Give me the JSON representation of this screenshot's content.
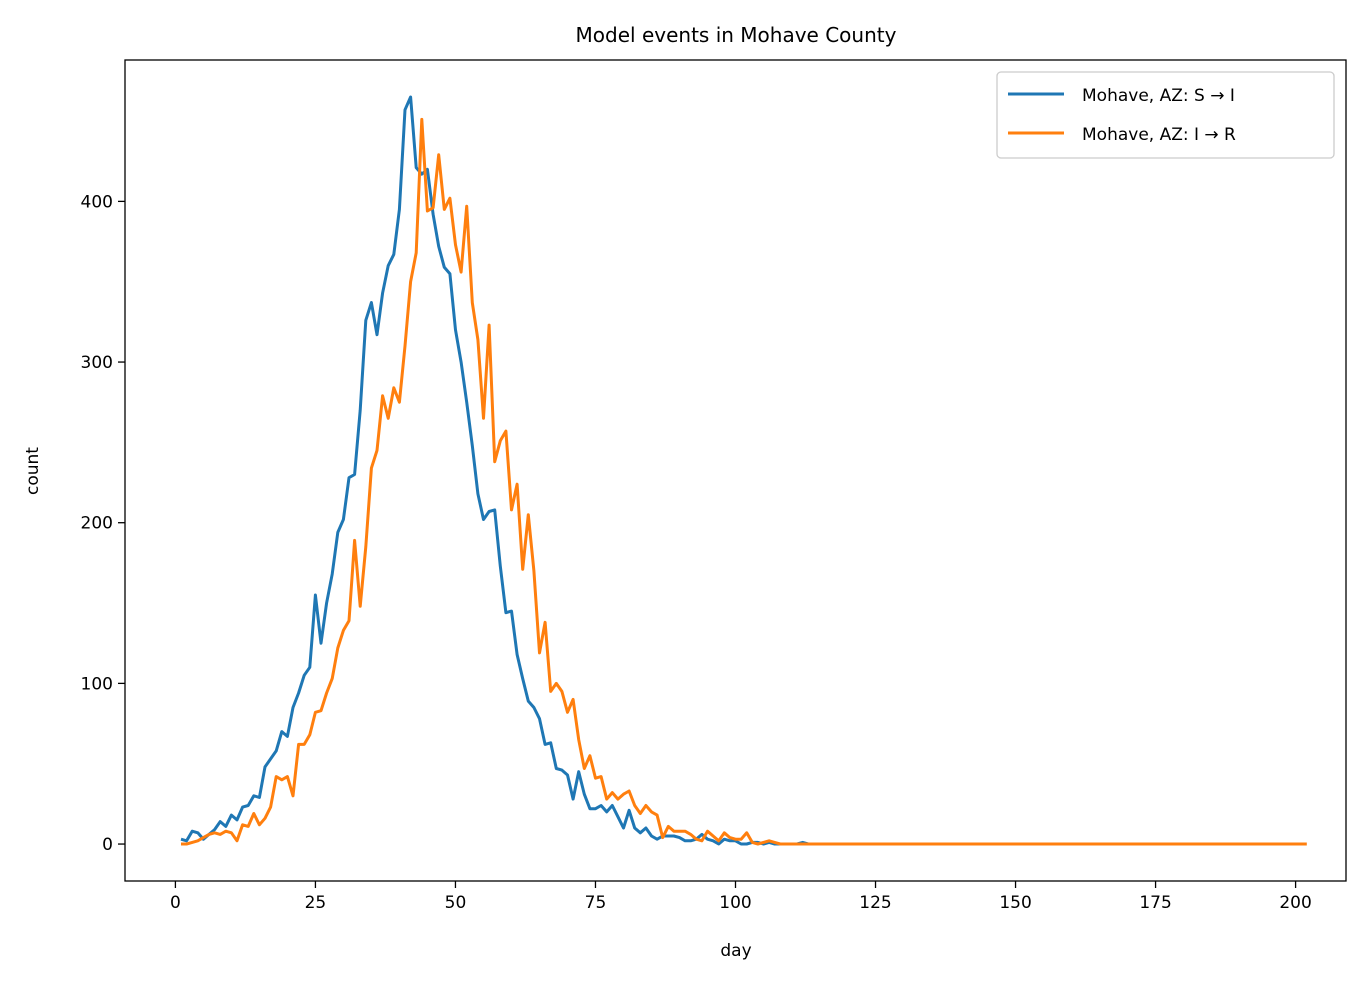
{
  "chart_data": {
    "type": "line",
    "title": "Model events in Mohave County",
    "xlabel": "day",
    "ylabel": "count",
    "xlim": [
      -9,
      209
    ],
    "ylim": [
      -23,
      488
    ],
    "x_start": 1,
    "xticks": [
      0,
      25,
      50,
      75,
      100,
      125,
      150,
      175,
      200
    ],
    "yticks": [
      0,
      100,
      200,
      300,
      400
    ],
    "grid": false,
    "legend_position": "top-right",
    "series": [
      {
        "name": "Mohave, AZ: S → I",
        "color": "#1f77b4",
        "values": [
          3,
          2,
          8,
          7,
          3,
          6,
          9,
          14,
          11,
          18,
          15,
          23,
          24,
          30,
          29,
          48,
          53,
          58,
          70,
          67,
          85,
          94,
          105,
          110,
          155,
          125,
          150,
          168,
          194,
          202,
          228,
          230,
          270,
          326,
          337,
          317,
          343,
          360,
          367,
          395,
          457,
          465,
          421,
          417,
          420,
          392,
          372,
          359,
          355,
          320,
          300,
          275,
          248,
          218,
          202,
          207,
          208,
          173,
          144,
          145,
          118,
          103,
          89,
          85,
          78,
          62,
          63,
          47,
          46,
          43,
          28,
          45,
          31,
          22,
          22,
          24,
          20,
          24,
          17,
          10,
          21,
          10,
          7,
          10,
          5,
          3,
          5,
          5,
          5,
          4,
          2,
          2,
          3,
          6,
          3,
          2,
          0,
          3,
          2,
          2,
          0,
          0,
          1,
          1,
          0,
          1,
          0,
          0,
          0,
          0,
          0,
          1,
          0,
          0,
          0,
          0,
          0,
          0,
          0,
          0,
          0,
          0,
          0,
          0,
          0,
          0,
          0,
          0,
          0,
          0,
          0,
          0,
          0,
          0,
          0,
          0,
          0,
          0,
          0,
          0,
          0,
          0,
          0,
          0,
          0,
          0,
          0,
          0,
          0,
          0,
          0,
          0,
          0,
          0,
          0,
          0,
          0,
          0,
          0,
          0,
          0,
          0,
          0,
          0,
          0,
          0,
          0,
          0,
          0,
          0,
          0,
          0,
          0,
          0,
          0,
          0,
          0,
          0,
          0,
          0,
          0,
          0,
          0,
          0,
          0,
          0,
          0,
          0,
          0,
          0,
          0,
          0,
          0,
          0,
          0,
          0,
          0,
          0,
          0,
          0
        ]
      },
      {
        "name": "Mohave, AZ: I → R",
        "color": "#ff7f0e",
        "values": [
          0,
          0,
          1,
          2,
          4,
          6,
          7,
          6,
          8,
          7,
          2,
          12,
          11,
          19,
          12,
          16,
          23,
          42,
          40,
          42,
          30,
          62,
          62,
          68,
          82,
          83,
          94,
          103,
          122,
          133,
          139,
          189,
          148,
          185,
          234,
          245,
          279,
          265,
          284,
          275,
          310,
          350,
          368,
          451,
          394,
          396,
          429,
          395,
          402,
          373,
          356,
          397,
          337,
          314,
          265,
          323,
          238,
          251,
          257,
          208,
          224,
          171,
          205,
          170,
          119,
          138,
          95,
          100,
          95,
          82,
          90,
          65,
          47,
          55,
          41,
          42,
          28,
          32,
          28,
          31,
          33,
          24,
          19,
          24,
          20,
          18,
          4,
          11,
          8,
          8,
          8,
          6,
          3,
          2,
          8,
          5,
          2,
          7,
          4,
          3,
          3,
          7,
          1,
          0,
          1,
          2,
          1,
          0,
          0,
          0,
          0,
          0,
          0,
          0,
          0,
          0,
          0,
          0,
          0,
          0,
          0,
          0,
          0,
          0,
          0,
          0,
          0,
          0,
          0,
          0,
          0,
          0,
          0,
          0,
          0,
          0,
          0,
          0,
          0,
          0,
          0,
          0,
          0,
          0,
          0,
          0,
          0,
          0,
          0,
          0,
          0,
          0,
          0,
          0,
          0,
          0,
          0,
          0,
          0,
          0,
          0,
          0,
          0,
          0,
          0,
          0,
          0,
          0,
          0,
          0,
          0,
          0,
          0,
          0,
          0,
          0,
          0,
          0,
          0,
          0,
          0,
          0,
          0,
          0,
          0,
          0,
          0,
          0,
          0,
          0,
          0,
          0,
          0,
          0,
          0,
          0,
          0,
          0,
          0,
          0,
          0,
          0
        ]
      }
    ]
  }
}
